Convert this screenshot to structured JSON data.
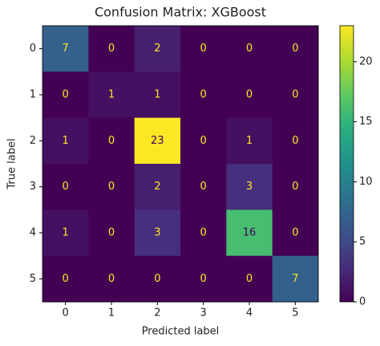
{
  "chart_data": {
    "type": "heatmap",
    "title": "Confusion Matrix: XGBoost",
    "x_label": "Predicted label",
    "y_label": "True label",
    "x_categories": [
      "0",
      "1",
      "2",
      "3",
      "4",
      "5"
    ],
    "y_categories": [
      "0",
      "1",
      "2",
      "3",
      "4",
      "5"
    ],
    "values": [
      [
        7,
        0,
        2,
        0,
        0,
        0
      ],
      [
        0,
        1,
        1,
        0,
        0,
        0
      ],
      [
        1,
        0,
        23,
        0,
        1,
        0
      ],
      [
        0,
        0,
        2,
        0,
        3,
        0
      ],
      [
        1,
        0,
        3,
        0,
        16,
        0
      ],
      [
        0,
        0,
        0,
        0,
        0,
        7
      ]
    ],
    "colormap": "viridis",
    "zlim": [
      0,
      23
    ],
    "zticks": [
      0,
      5,
      10,
      15,
      20
    ]
  }
}
